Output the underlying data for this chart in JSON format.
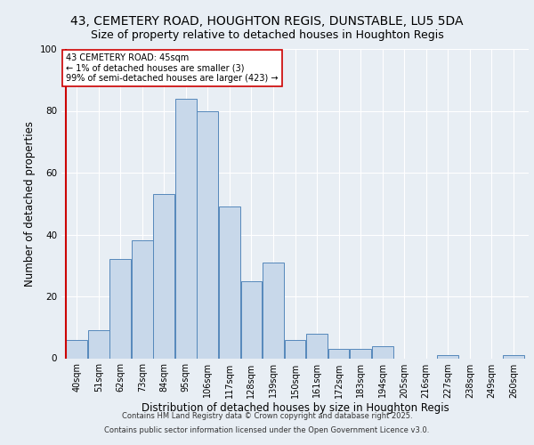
{
  "title_line1": "43, CEMETERY ROAD, HOUGHTON REGIS, DUNSTABLE, LU5 5DA",
  "title_line2": "Size of property relative to detached houses in Houghton Regis",
  "xlabel": "Distribution of detached houses by size in Houghton Regis",
  "ylabel": "Number of detached properties",
  "footer_line1": "Contains HM Land Registry data © Crown copyright and database right 2025.",
  "footer_line2": "Contains public sector information licensed under the Open Government Licence v3.0.",
  "bar_categories": [
    "40sqm",
    "51sqm",
    "62sqm",
    "73sqm",
    "84sqm",
    "95sqm",
    "106sqm",
    "117sqm",
    "128sqm",
    "139sqm",
    "150sqm",
    "161sqm",
    "172sqm",
    "183sqm",
    "194sqm",
    "205sqm",
    "216sqm",
    "227sqm",
    "238sqm",
    "249sqm",
    "260sqm"
  ],
  "bar_values": [
    6,
    9,
    32,
    38,
    53,
    84,
    80,
    49,
    25,
    31,
    6,
    8,
    3,
    3,
    4,
    0,
    0,
    1,
    0,
    0,
    1
  ],
  "bar_color": "#c8d8ea",
  "bar_edge_color": "#5588bb",
  "highlight_line_color": "#cc0000",
  "annotation_text": "43 CEMETERY ROAD: 45sqm\n← 1% of detached houses are smaller (3)\n99% of semi-detached houses are larger (423) →",
  "annotation_box_color": "#ffffff",
  "annotation_box_edge_color": "#cc0000",
  "ylim": [
    0,
    100
  ],
  "yticks": [
    0,
    20,
    40,
    60,
    80,
    100
  ],
  "background_color": "#e8eef4",
  "plot_background": "#e8eef4",
  "grid_color": "#ffffff",
  "title_fontsize": 10,
  "subtitle_fontsize": 9,
  "axis_label_fontsize": 8.5,
  "tick_fontsize": 7,
  "annotation_fontsize": 7,
  "footer_fontsize": 6
}
